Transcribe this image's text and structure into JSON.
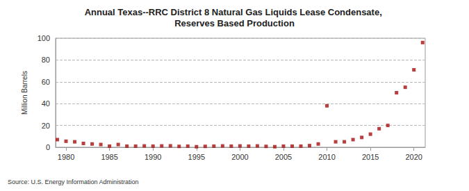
{
  "chart_data": {
    "type": "scatter",
    "title": "Annual Texas--RRC District 8 Natural Gas Liquids Lease Condensate, Reserves Based Production",
    "y_label": "Million Barrels",
    "source": "Source: U.S. Energy Information Administration",
    "x": [
      1979,
      1980,
      1981,
      1982,
      1983,
      1984,
      1985,
      1986,
      1987,
      1988,
      1989,
      1990,
      1991,
      1992,
      1993,
      1994,
      1995,
      1996,
      1997,
      1998,
      1999,
      2000,
      2001,
      2002,
      2003,
      2004,
      2005,
      2006,
      2007,
      2008,
      2009,
      2010,
      2011,
      2012,
      2013,
      2014,
      2015,
      2016,
      2017,
      2018,
      2019,
      2020,
      2021
    ],
    "values": [
      7,
      5.5,
      5,
      3.5,
      3,
      2.5,
      1,
      2.5,
      1,
      1,
      1.2,
      1,
      1.2,
      1.3,
      0.8,
      1,
      0.5,
      0.8,
      1,
      1.2,
      1,
      1.2,
      1,
      1.2,
      0.8,
      0.5,
      1,
      1,
      1,
      1.5,
      3,
      38,
      5,
      5,
      7,
      9,
      12,
      17,
      20,
      50,
      55,
      71,
      96
    ],
    "color": "#a50f0f",
    "marker": "square",
    "xlim": [
      1978.8,
      2021.3
    ],
    "xticks": [
      1980,
      1985,
      1990,
      1995,
      2000,
      2005,
      2010,
      2015,
      2020
    ],
    "ylim": [
      0,
      100
    ],
    "yticks": [
      0,
      20,
      40,
      60,
      80,
      100
    ],
    "grid": true
  }
}
